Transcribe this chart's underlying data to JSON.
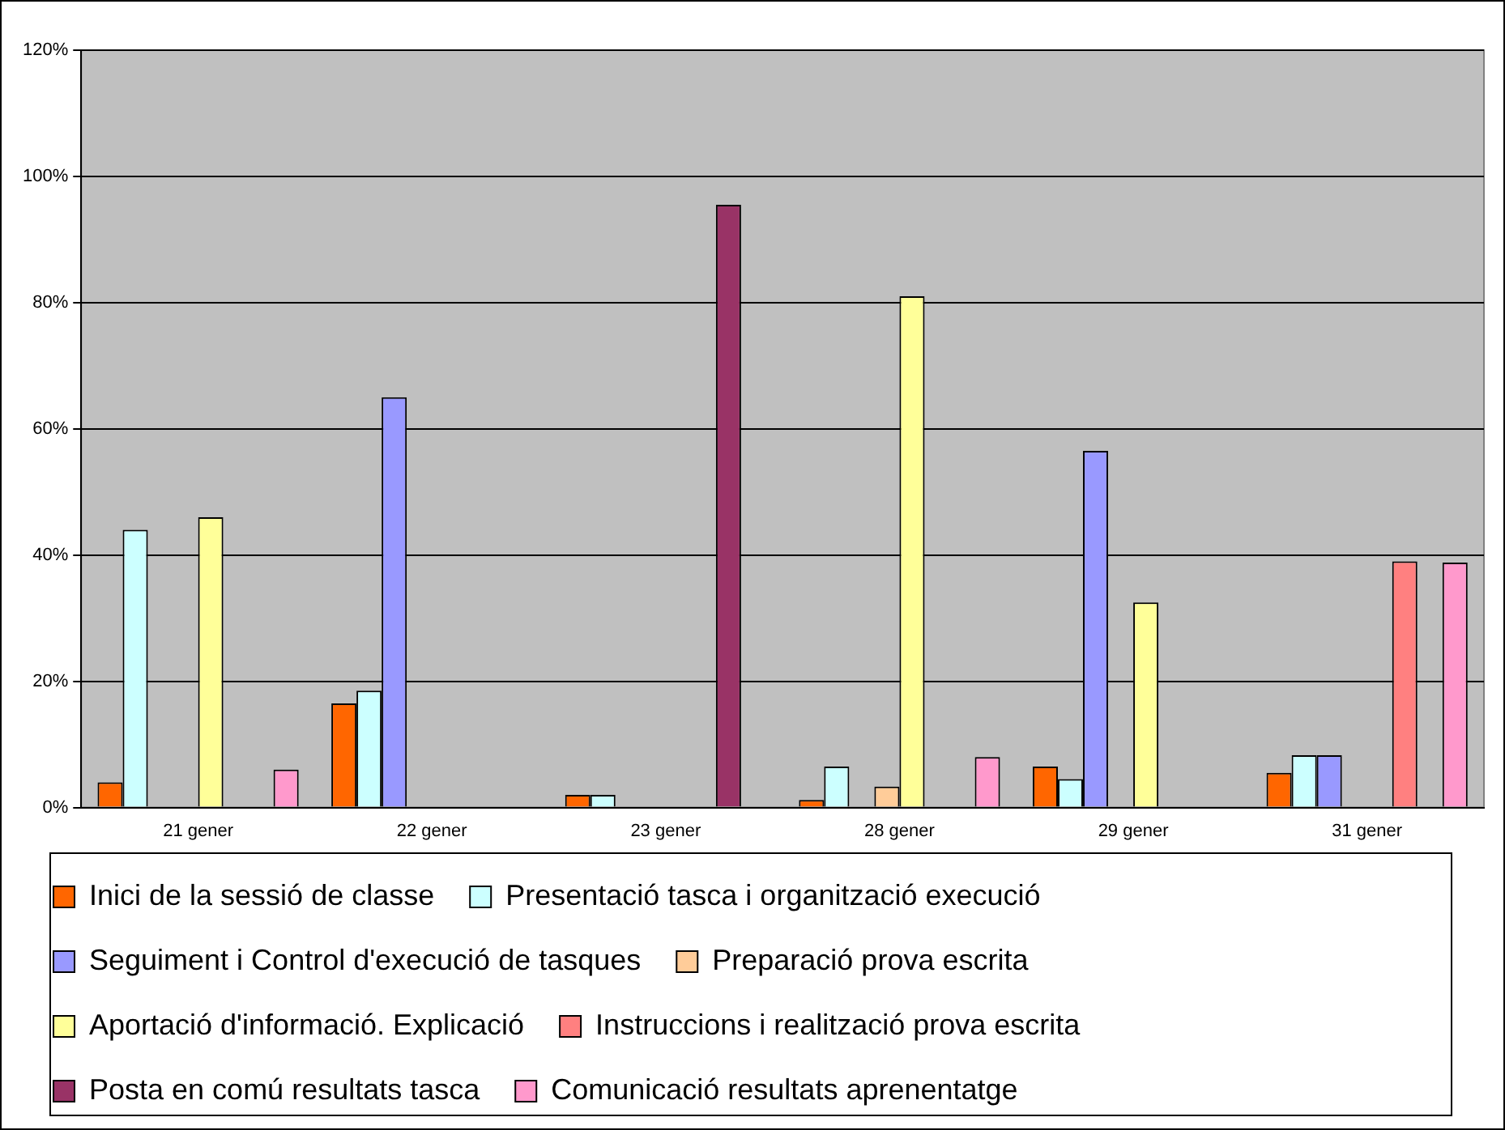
{
  "chart_data": {
    "type": "bar",
    "categories": [
      "21 gener",
      "22 gener",
      "23 gener",
      "28 gener",
      "29 gener",
      "31 gener"
    ],
    "series": [
      {
        "name": "Inici de la sessió de classe",
        "color": "#ff6600",
        "values": [
          4,
          16.5,
          2,
          1.2,
          6.5,
          5.5
        ]
      },
      {
        "name": "Presentació tasca i organització execució",
        "color": "#ccffff",
        "values": [
          44,
          18.5,
          2,
          6.5,
          4.5,
          8.3
        ]
      },
      {
        "name": "Seguiment i Control d'execució de tasques",
        "color": "#9999ff",
        "values": [
          null,
          65,
          null,
          null,
          56.5,
          8.3
        ]
      },
      {
        "name": "Preparació prova escrita",
        "color": "#ffcc99",
        "values": [
          null,
          null,
          null,
          3.3,
          null,
          null
        ]
      },
      {
        "name": "Aportació d'informació. Explicació",
        "color": "#ffff99",
        "values": [
          46,
          null,
          null,
          81,
          32.5,
          null
        ]
      },
      {
        "name": "Instruccions i realització prova escrita",
        "color": "#ff8080",
        "values": [
          null,
          null,
          null,
          null,
          null,
          39
        ]
      },
      {
        "name": "Posta en comú resultats tasca",
        "color": "#993366",
        "values": [
          null,
          null,
          95.5,
          null,
          null,
          null
        ]
      },
      {
        "name": "Comunicació resultats aprenentatge",
        "color": "#ff99cc",
        "values": [
          6,
          null,
          null,
          8,
          null,
          38.8
        ]
      }
    ],
    "ylim": [
      0,
      120
    ],
    "yticks": [
      {
        "value": 0,
        "label": "0%"
      },
      {
        "value": 20,
        "label": "20%"
      },
      {
        "value": 40,
        "label": "40%"
      },
      {
        "value": 60,
        "label": "60%"
      },
      {
        "value": 80,
        "label": "80%"
      },
      {
        "value": 100,
        "label": "100%"
      },
      {
        "value": 120,
        "label": "120%"
      }
    ],
    "grid": "y",
    "legend": "bottom"
  }
}
